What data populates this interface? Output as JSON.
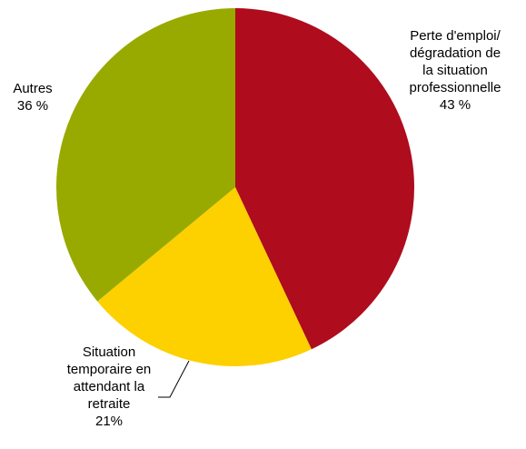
{
  "chart_data": {
    "type": "pie",
    "title": "",
    "slices": [
      {
        "name": "Perte d'emploi/ dégradation de la situation professionnelle",
        "label_lines": [
          "Perte d'emploi/",
          "dégradation de",
          "la situation",
          "professionnelle"
        ],
        "value_label": "43 %",
        "value": 43,
        "color": "#AF0C1E"
      },
      {
        "name": "Situation temporaire en attendant la retraite",
        "label_lines": [
          "Situation",
          "temporaire en",
          "attendant la",
          "retraite"
        ],
        "value_label": "21%",
        "value": 21,
        "color": "#FDD000"
      },
      {
        "name": "Autres",
        "label_lines": [
          "Autres"
        ],
        "value_label": "36 %",
        "value": 36,
        "color": "#98AA00"
      }
    ]
  }
}
